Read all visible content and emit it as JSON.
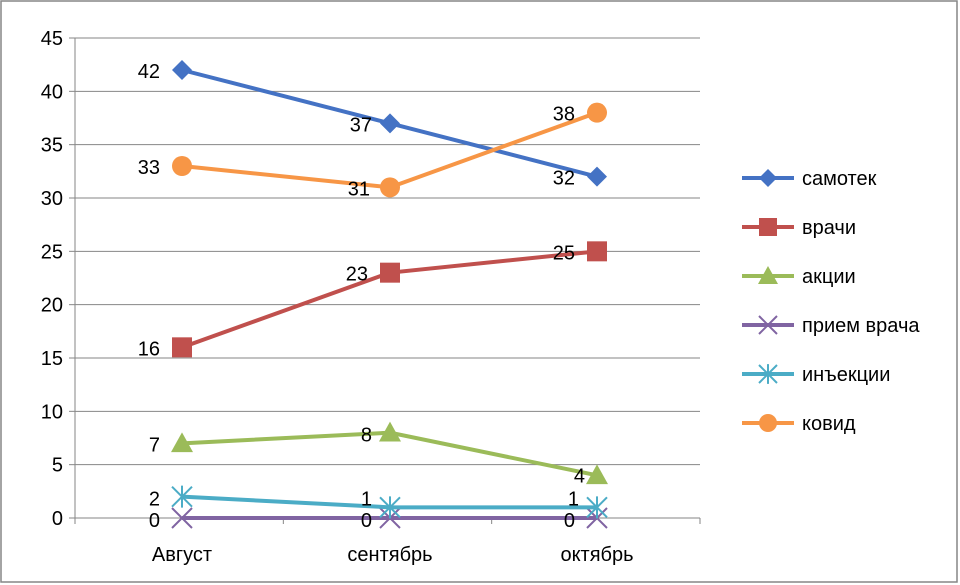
{
  "chart_data": {
    "type": "line",
    "categories": [
      "Август",
      "сентябрь",
      "октябрь"
    ],
    "ylim": [
      0,
      45
    ],
    "yticks": [
      0,
      5,
      10,
      15,
      20,
      25,
      30,
      35,
      40,
      45
    ],
    "grid": true,
    "legend_position": "right",
    "series": [
      {
        "name": "самотек",
        "values": [
          42,
          37,
          32
        ],
        "color": "#4472C4",
        "marker": "diamond"
      },
      {
        "name": "врачи",
        "values": [
          16,
          23,
          25
        ],
        "color": "#C0504D",
        "marker": "square"
      },
      {
        "name": "акции",
        "values": [
          7,
          8,
          4
        ],
        "color": "#9BBB59",
        "marker": "triangle"
      },
      {
        "name": "прием врача",
        "values": [
          0,
          0,
          0
        ],
        "color": "#8064A2",
        "marker": "x"
      },
      {
        "name": "инъекции",
        "values": [
          2,
          1,
          1
        ],
        "color": "#4BACC6",
        "marker": "star"
      },
      {
        "name": "ковид",
        "values": [
          33,
          31,
          38
        ],
        "color": "#F79646",
        "marker": "circle"
      }
    ]
  }
}
